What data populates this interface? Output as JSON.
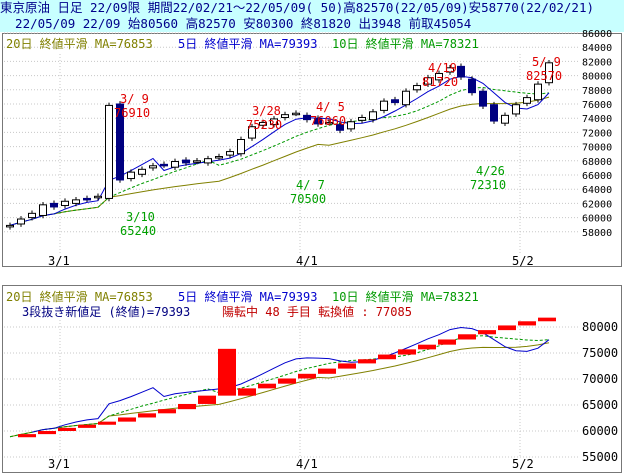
{
  "header": {
    "line1": "東京原油 日足 22/09限 期間22/02/21～22/05/09( 50)高82570(22/05/09)安58770(22/02/21)",
    "line2": "  22/05/09 22/09 始80560 高82570 安80300 終81820 出3948 前取45054"
  },
  "top_legend": {
    "ma20": "20日 終値平滑 MA=76853",
    "ma5": "5日 終値平滑 MA=79393",
    "ma10": "10日 終値平滑 MA=78321"
  },
  "bottom_legend": {
    "ma20": "20日 終値平滑 MA=76853",
    "ma5": "5日 終値平滑 MA=79393",
    "ma10": "10日 終値平滑 MA=78321",
    "line2_prefix": "3段抜き新値足 (終値)=79393",
    "line2_status": "陽転中  48 手目 転換値 : 77085"
  },
  "x_axis_labels": [
    "3/1",
    "4/1",
    "5/2"
  ],
  "top_y_labels": [
    "86000",
    "84000",
    "82000",
    "80000",
    "78000",
    "76000",
    "74000",
    "72000",
    "70000",
    "68000",
    "66000",
    "64000",
    "62000",
    "60000",
    "58000"
  ],
  "bottom_y_labels": [
    "80000",
    "75000",
    "70000",
    "65000",
    "60000",
    "55000"
  ],
  "annotations_top": [
    {
      "date": "3/ 9",
      "value": "76910",
      "color": "#e00000"
    },
    {
      "date": "3/28",
      "value": "75230",
      "color": "#e00000"
    },
    {
      "date": "4/ 5",
      "value": "76060",
      "color": "#e00000"
    },
    {
      "date": "4/19",
      "value": "81720",
      "color": "#e00000"
    },
    {
      "date": "5/ 9",
      "value": "82570",
      "color": "#e00000"
    },
    {
      "date": "3/10",
      "value": "65240",
      "color": "#00a000"
    },
    {
      "date": "4/ 7",
      "value": "70500",
      "color": "#00a000"
    },
    {
      "date": "4/26",
      "value": "72310",
      "color": "#00a000"
    }
  ],
  "colors": {
    "header_bg": "#c8ffff",
    "header_text": "#00008b",
    "ma20": "#808000",
    "ma5": "#0000cd",
    "ma10": "#009900",
    "high_annot": "#e00000",
    "low_annot": "#00a000",
    "bear_candle": "#000080",
    "step_up": "#ff0000",
    "grid": "#b8b8b8"
  }
}
